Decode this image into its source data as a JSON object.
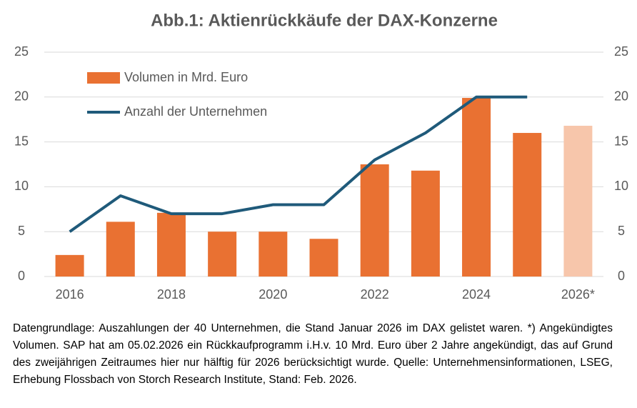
{
  "chart_data": {
    "type": "bar_line",
    "title": "Abb.1: Aktienrückkäufe der DAX-Konzerne",
    "categories": [
      "2016",
      null,
      "2018",
      null,
      "2020",
      null,
      "2022",
      null,
      "2024",
      null,
      "2026*"
    ],
    "series": [
      {
        "name": "Volumen in Mrd. Euro",
        "type": "bar",
        "color": "#e97132",
        "colors": [
          "#e97132",
          "#e97132",
          "#e97132",
          "#e97132",
          "#e97132",
          "#e97132",
          "#e97132",
          "#e97132",
          "#e97132",
          "#e97132",
          "#f7c6ab"
        ],
        "values": [
          2.4,
          6.1,
          7.1,
          5.0,
          5.0,
          4.2,
          12.5,
          11.8,
          19.9,
          16.0,
          16.8
        ]
      },
      {
        "name": "Anzahl der Unternehmen",
        "type": "line",
        "axis": "y2",
        "color": "#1f5a7a",
        "values": [
          5,
          9,
          7,
          7,
          8,
          8,
          13,
          16,
          20,
          20,
          null
        ]
      }
    ],
    "ylim": [
      0,
      25
    ],
    "yticks": [
      0,
      5,
      10,
      15,
      20,
      25
    ],
    "y2lim": [
      0,
      25
    ],
    "y2ticks": [
      0,
      5,
      10,
      15,
      20,
      25
    ],
    "grid": true,
    "legend": "top-left",
    "footnote": "Datengrundlage: Auszahlungen der 40 Unternehmen, die Stand Januar 2026 im DAX gelistet waren. *) Angekündigtes Volumen. SAP hat am 05.02.2026 ein Rückkaufprogramm i.H.v. 10 Mrd. Euro über 2 Jahre angekündigt, das auf Grund des zweijährigen Zeitraumes hier nur hälftig für 2026 berücksichtigt wurde. Quelle: Unternehmensinformationen, LSEG, Erhebung Flossbach von Storch Research Institute, Stand: Feb. 2026."
  }
}
